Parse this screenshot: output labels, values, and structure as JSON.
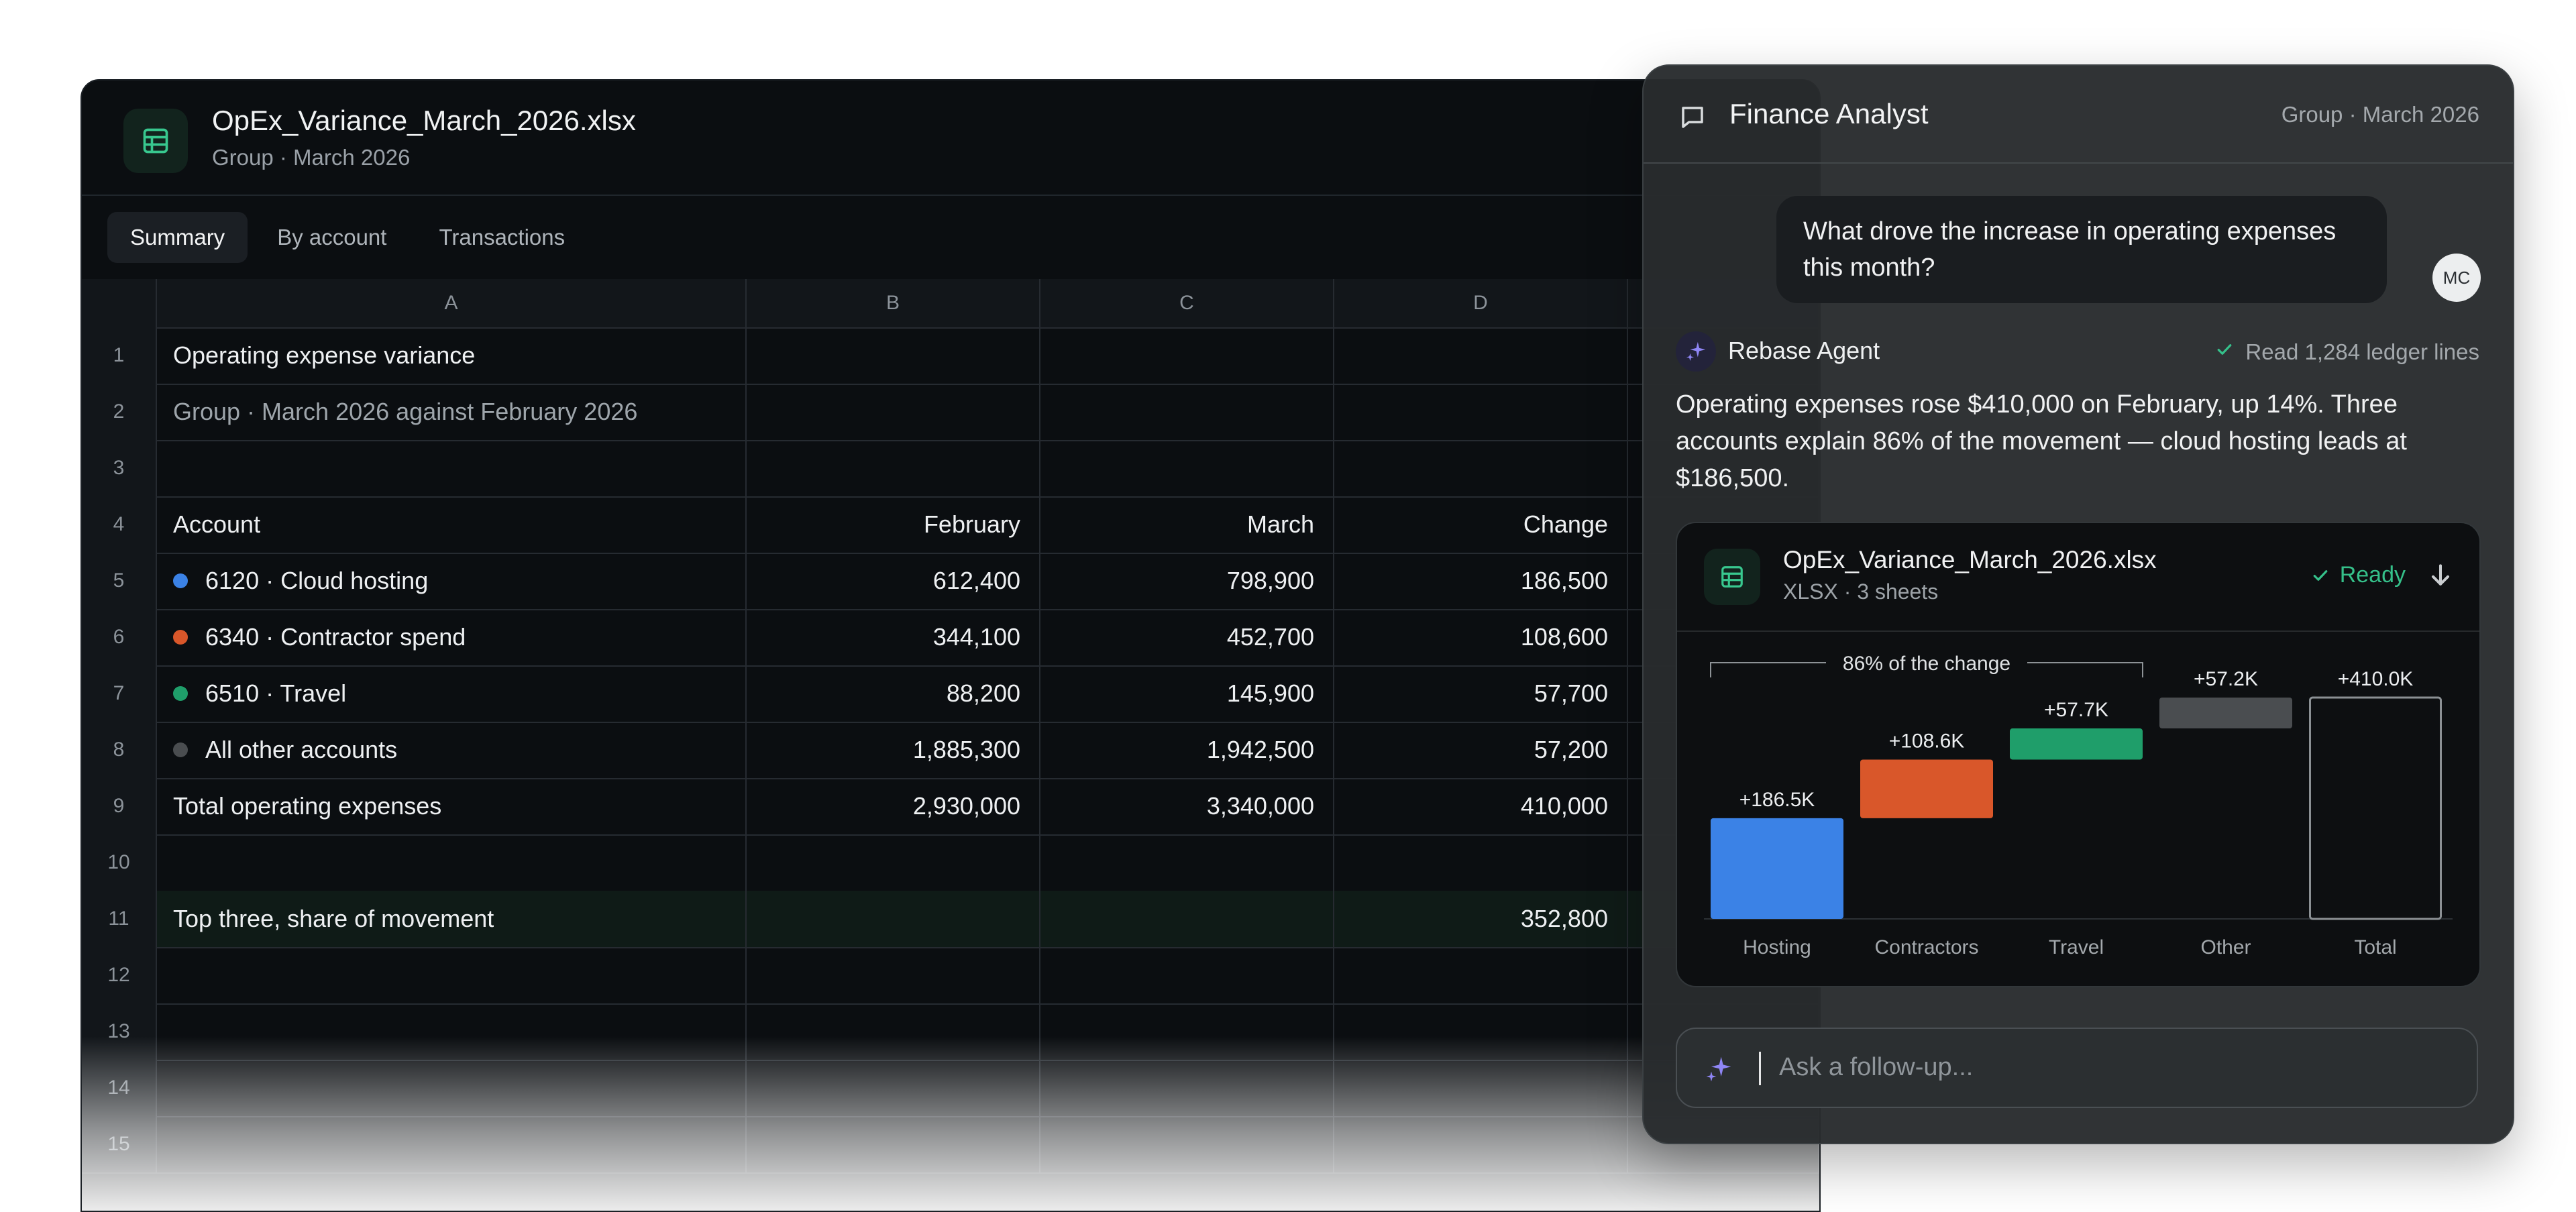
{
  "colors": {
    "hosting": "#3b82e6",
    "contractors": "#d9572a",
    "travel": "#1f9e6a",
    "other": "#4a4d50",
    "ready": "#35c08a",
    "agent_accent": "#8f86f5"
  },
  "sheet": {
    "file_name": "OpEx_Variance_March_2026.xlsx",
    "subtitle": "Group · March 2026",
    "icon": "spreadsheet-icon",
    "tabs": [
      "Summary",
      "By account",
      "Transactions"
    ],
    "active_tab": "Summary",
    "columns": [
      "A",
      "B",
      "C",
      "D"
    ],
    "rows": [
      {
        "n": "1",
        "a": "Operating expense variance",
        "b": "",
        "c": "",
        "d": ""
      },
      {
        "n": "2",
        "a": "Group · March 2026 against February 2026",
        "b": "",
        "c": "",
        "d": ""
      },
      {
        "n": "3",
        "a": "",
        "b": "",
        "c": "",
        "d": ""
      },
      {
        "n": "4",
        "a": "Account",
        "b": "February",
        "c": "March",
        "d": "Change"
      },
      {
        "n": "5",
        "a": "6120 · Cloud hosting",
        "b": "612,400",
        "c": "798,900",
        "d": "186,500"
      },
      {
        "n": "6",
        "a": "6340 · Contractor spend",
        "b": "344,100",
        "c": "452,700",
        "d": "108,600"
      },
      {
        "n": "7",
        "a": "6510 · Travel",
        "b": "88,200",
        "c": "145,900",
        "d": "57,700"
      },
      {
        "n": "8",
        "a": "All other accounts",
        "b": "1,885,300",
        "c": "1,942,500",
        "d": "57,200"
      },
      {
        "n": "9",
        "a": "Total operating expenses",
        "b": "2,930,000",
        "c": "3,340,000",
        "d": "410,000"
      },
      {
        "n": "10",
        "a": "",
        "b": "",
        "c": "",
        "d": ""
      },
      {
        "n": "11",
        "a": "Top three, share of movement",
        "b": "",
        "c": "",
        "d": "352,800"
      },
      {
        "n": "12",
        "a": "",
        "b": "",
        "c": "",
        "d": ""
      },
      {
        "n": "13",
        "a": "",
        "b": "",
        "c": "",
        "d": ""
      },
      {
        "n": "14",
        "a": "",
        "b": "",
        "c": "",
        "d": ""
      },
      {
        "n": "15",
        "a": "",
        "b": "",
        "c": "",
        "d": ""
      }
    ]
  },
  "chat": {
    "title": "Finance Analyst",
    "context": "Group · March 2026",
    "user_message": "What drove the increase in operating expenses this month?",
    "user_initials": "MC",
    "agent_name": "Rebase Agent",
    "agent_status": "Read 1,284 ledger lines",
    "answer": "Operating expenses rose $410,000 on February, up 14%. Three accounts explain 86% of the movement — cloud hosting leads at $186,500.",
    "attachment": {
      "file_name": "OpEx_Variance_March_2026.xlsx",
      "meta": "XLSX · 3 sheets",
      "status": "Ready"
    },
    "input_placeholder": "Ask a follow-up..."
  },
  "chart_data": {
    "type": "bar",
    "subtype": "waterfall",
    "categories": [
      "Hosting",
      "Contractors",
      "Travel",
      "Other",
      "Total"
    ],
    "values": [
      186.5,
      108.6,
      57.7,
      57.2,
      410.0
    ],
    "data_labels": [
      "+186.5K",
      "+108.6K",
      "+57.7K",
      "+57.2K",
      "+410.0K"
    ],
    "annotation": "86% of the change",
    "ylim": [
      0,
      410
    ]
  }
}
